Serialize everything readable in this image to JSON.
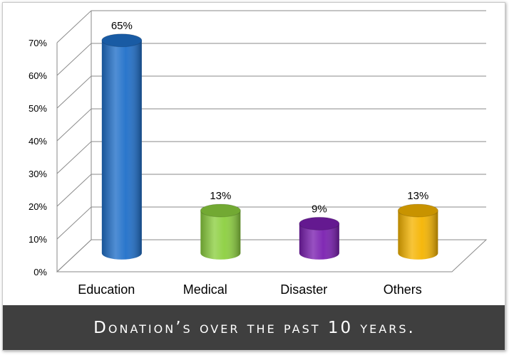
{
  "chart_data": {
    "type": "bar",
    "title": "Donation’s over the past 10 years.",
    "categories": [
      "Education",
      "Medical",
      "Disaster",
      "Others"
    ],
    "values": [
      65,
      13,
      9,
      13
    ],
    "data_labels": [
      "65%",
      "13%",
      "9%",
      "13%"
    ],
    "colors": [
      "#1f6fc9",
      "#8ccf3f",
      "#7a1fb0",
      "#f5b400"
    ],
    "ylim": [
      0,
      70
    ],
    "yticks": [
      "0%",
      "10%",
      "20%",
      "30%",
      "40%",
      "50%",
      "60%",
      "70%"
    ],
    "grid": true,
    "legend": "none"
  }
}
